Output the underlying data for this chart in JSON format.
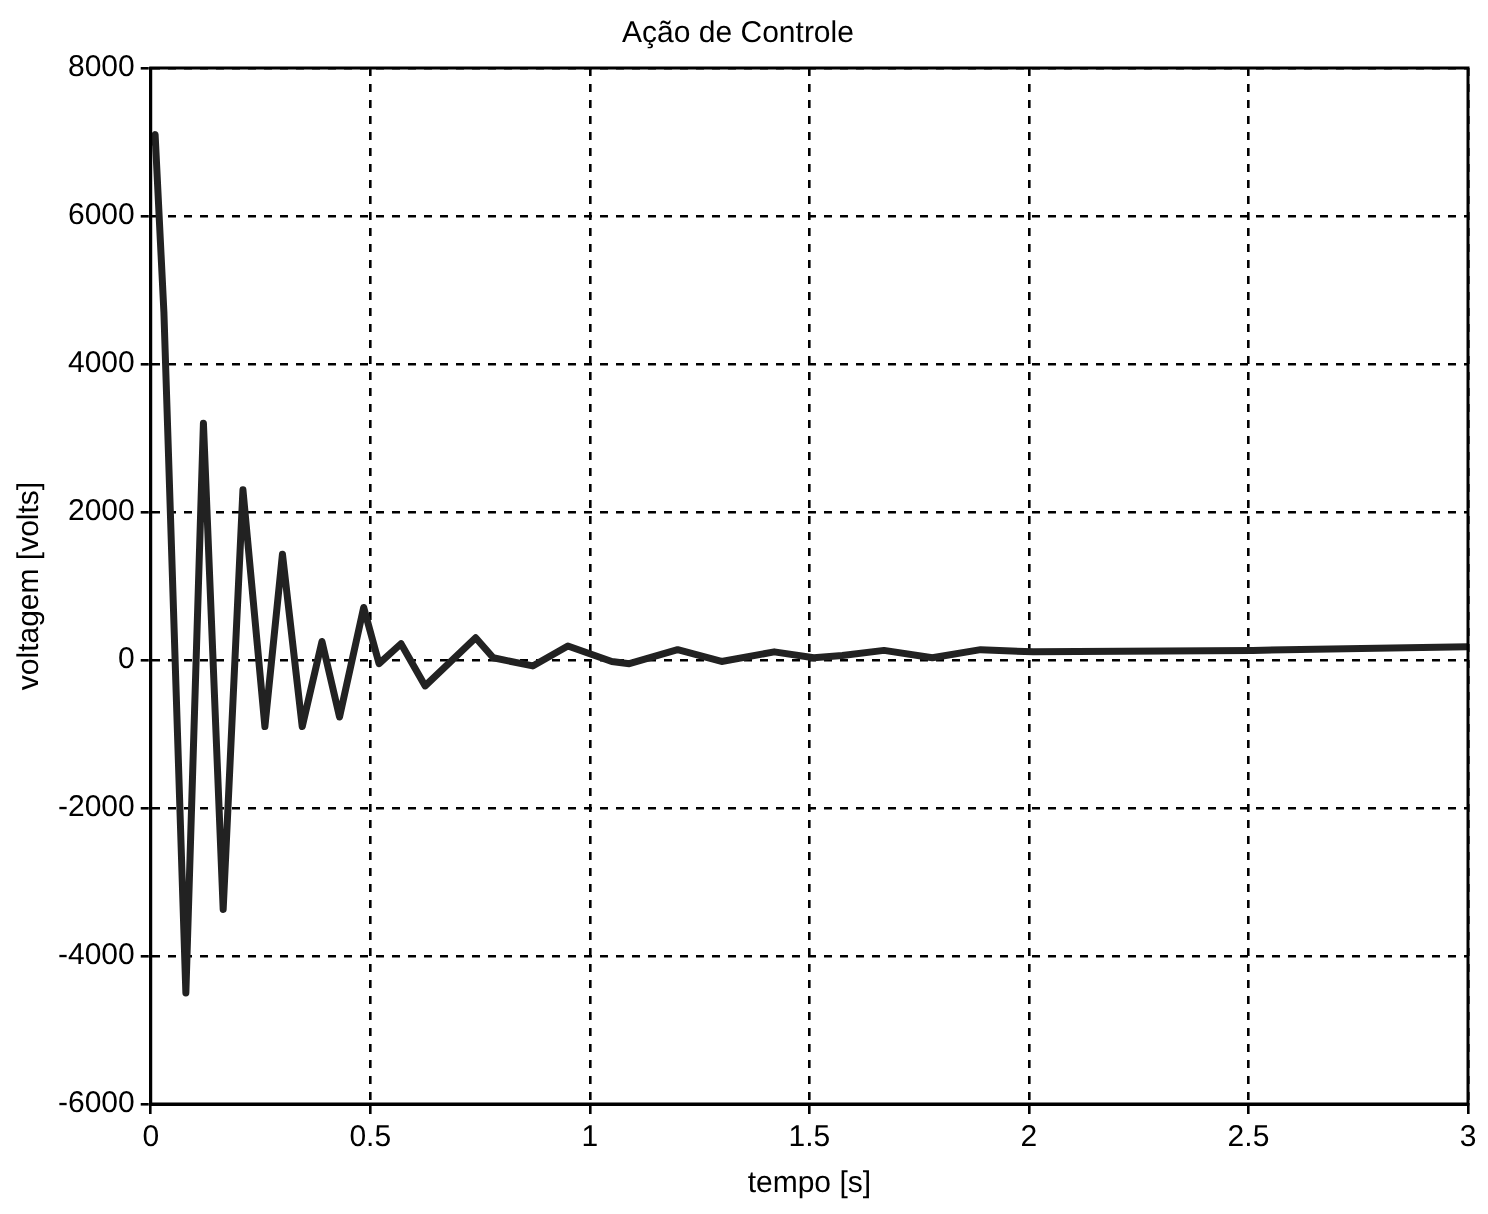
{
  "chart_data": {
    "type": "line",
    "title": "Ação de Controle",
    "xlabel": "tempo [s]",
    "ylabel": "voltagem [volts]",
    "xlim": [
      0,
      3
    ],
    "xticks": [
      0,
      0.5,
      1,
      1.5,
      2,
      2.5,
      3
    ],
    "ylim": [
      -6000,
      8000
    ],
    "yticks": [
      -6000,
      -4000,
      -2000,
      0,
      2000,
      4000,
      6000,
      8000
    ],
    "grid": true,
    "line_style": "solid",
    "marker": "none",
    "series": [
      {
        "color": "#222222",
        "x": [
          0,
          0.01,
          0.03,
          0.08,
          0.12,
          0.165,
          0.21,
          0.26,
          0.3,
          0.345,
          0.39,
          0.43,
          0.485,
          0.52,
          0.57,
          0.625,
          0.74,
          0.78,
          0.87,
          0.95,
          1.05,
          1.09,
          1.2,
          1.3,
          1.42,
          1.51,
          1.575,
          1.67,
          1.78,
          1.89,
          2.01,
          2.51,
          3
        ],
        "values": [
          7000,
          7100,
          4700,
          -4500,
          3200,
          -3370,
          2300,
          -900,
          1430,
          -900,
          250,
          -770,
          710,
          -50,
          220,
          -350,
          300,
          30,
          -80,
          190,
          -20,
          -50,
          140,
          -20,
          110,
          30,
          60,
          130,
          30,
          140,
          110,
          130,
          180
        ]
      }
    ]
  }
}
